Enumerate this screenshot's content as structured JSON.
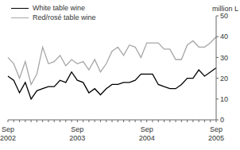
{
  "chart_data": {
    "type": "line",
    "y_label": "million L",
    "categories": [
      "Sep 2002",
      null,
      null,
      null,
      null,
      null,
      null,
      null,
      null,
      null,
      null,
      null,
      "Sep 2003",
      null,
      null,
      null,
      null,
      null,
      null,
      null,
      null,
      null,
      null,
      null,
      "Sep 2004",
      null,
      null,
      null,
      null,
      null,
      null,
      null,
      null,
      null,
      null,
      null,
      "Sep 2005"
    ],
    "series": [
      {
        "name": "White table wine",
        "color": "#000000",
        "values": [
          21,
          19,
          13,
          18,
          10,
          14,
          15,
          16,
          16,
          19,
          18,
          23,
          19,
          18,
          13,
          15,
          12,
          15,
          17,
          17,
          18,
          18,
          19,
          22,
          22,
          22,
          17,
          16,
          15,
          15,
          17,
          20,
          20,
          24,
          21,
          23,
          25
        ]
      },
      {
        "name": "Red/rosé table wine",
        "color": "#a6a6a6",
        "values": [
          30,
          27,
          20,
          28,
          17,
          22,
          35,
          27,
          28,
          31,
          26,
          29,
          27,
          28,
          24,
          29,
          23,
          27,
          33,
          35,
          31,
          36,
          35,
          30,
          37,
          37,
          37,
          34,
          34,
          29,
          29,
          36,
          38,
          35,
          35,
          37,
          40
        ]
      }
    ],
    "ylim": [
      0,
      50
    ],
    "yticks": [
      0,
      10,
      20,
      30,
      40,
      50
    ],
    "grid": false,
    "legend": "top left"
  }
}
